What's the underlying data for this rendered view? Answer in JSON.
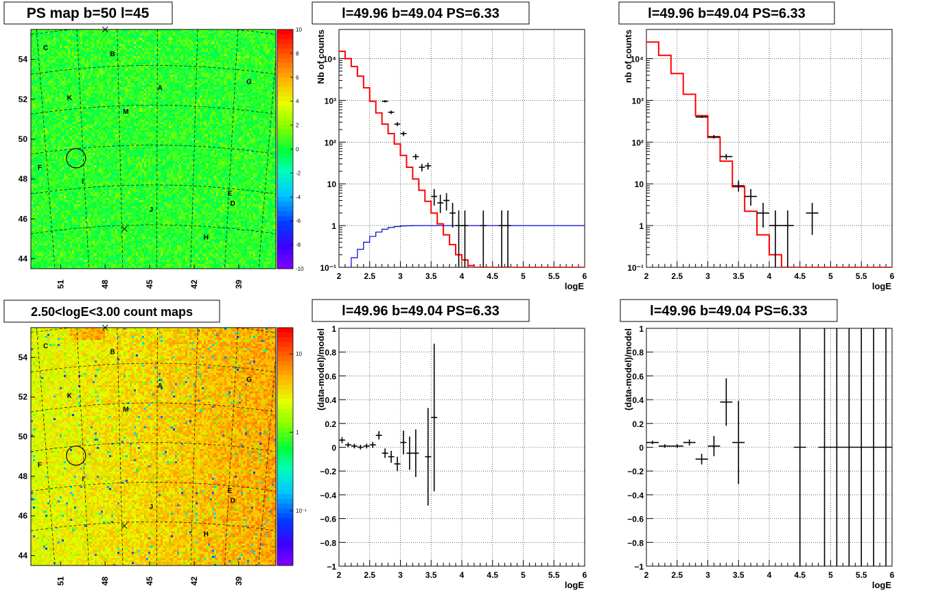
{
  "chart_data": [
    {
      "panel": "ps-map",
      "type": "heatmap",
      "title": "PS map b=50 l=45",
      "xticks": [
        "51",
        "48",
        "45",
        "42",
        "39"
      ],
      "yticks": [
        "54",
        "52",
        "50",
        "48",
        "46",
        "44"
      ],
      "xlim": [
        53,
        36.5
      ],
      "ylim": [
        43.5,
        55.5
      ],
      "colorscale": "linear",
      "zlim": [
        -10,
        10
      ],
      "palette_ticks": [
        "10",
        "8",
        "6",
        "4",
        "2",
        "0",
        "-2",
        "-4",
        "-6",
        "-8",
        "-10"
      ],
      "sources": [
        {
          "label": "C",
          "l": 52.0,
          "b": 54.6
        },
        {
          "label": "B",
          "l": 47.5,
          "b": 54.3
        },
        {
          "label": "A",
          "l": 44.3,
          "b": 52.6
        },
        {
          "label": "G",
          "l": 38.3,
          "b": 52.9
        },
        {
          "label": "K",
          "l": 50.4,
          "b": 52.1
        },
        {
          "label": "M",
          "l": 46.6,
          "b": 51.4
        },
        {
          "label": "F",
          "l": 52.4,
          "b": 48.6
        },
        {
          "label": "I",
          "l": 49.5,
          "b": 47.9
        },
        {
          "label": "E",
          "l": 39.6,
          "b": 47.3
        },
        {
          "label": "D",
          "l": 39.4,
          "b": 46.8
        },
        {
          "label": "J",
          "l": 44.9,
          "b": 46.5
        },
        {
          "label": "H",
          "l": 41.2,
          "b": 45.1
        }
      ],
      "crosses": [
        {
          "l": 48.0,
          "b": 55.5
        },
        {
          "l": 46.7,
          "b": 45.5
        }
      ],
      "circle": {
        "l": 49.96,
        "b": 49.04
      }
    },
    {
      "panel": "count-map",
      "type": "heatmap",
      "title": "2.50<logE<3.00 count maps",
      "xticks": [
        "51",
        "48",
        "45",
        "42",
        "39"
      ],
      "yticks": [
        "54",
        "52",
        "50",
        "48",
        "46",
        "44"
      ],
      "xlim": [
        53,
        36.5
      ],
      "ylim": [
        43.5,
        55.5
      ],
      "colorscale": "log",
      "palette_ticks": [
        "10",
        "1",
        "10⁻¹"
      ],
      "sources": [
        {
          "label": "C",
          "l": 52.0,
          "b": 54.6
        },
        {
          "label": "B",
          "l": 47.5,
          "b": 54.3
        },
        {
          "label": "A",
          "l": 44.3,
          "b": 52.6
        },
        {
          "label": "G",
          "l": 38.3,
          "b": 52.9
        },
        {
          "label": "K",
          "l": 50.4,
          "b": 52.1
        },
        {
          "label": "M",
          "l": 46.6,
          "b": 51.4
        },
        {
          "label": "F",
          "l": 52.4,
          "b": 48.6
        },
        {
          "label": "I",
          "l": 49.5,
          "b": 47.9
        },
        {
          "label": "E",
          "l": 39.6,
          "b": 47.3
        },
        {
          "label": "D",
          "l": 39.4,
          "b": 46.8
        },
        {
          "label": "J",
          "l": 44.9,
          "b": 46.5
        },
        {
          "label": "H",
          "l": 41.2,
          "b": 45.1
        }
      ],
      "crosses": [
        {
          "l": 48.0,
          "b": 55.5
        },
        {
          "l": 46.7,
          "b": 45.5
        }
      ],
      "circle": {
        "l": 49.96,
        "b": 49.04
      }
    },
    {
      "panel": "spectrum-fine",
      "type": "line",
      "title": "l=49.96 b=49.04 PS=6.33",
      "xlabel": "logE",
      "ylabel": "Nb of counts",
      "xlim": [
        2,
        6
      ],
      "ylim": [
        0.1,
        50000
      ],
      "ylog": true,
      "grid": true,
      "xticks": [
        "2",
        "2.5",
        "3",
        "3.5",
        "4",
        "4.5",
        "5",
        "5.5",
        "6"
      ],
      "yticks": [
        {
          "v": 10000,
          "label": "10⁴"
        },
        {
          "v": 1000,
          "label": "10³"
        },
        {
          "v": 100,
          "label": "10²"
        },
        {
          "v": 10,
          "label": "10"
        },
        {
          "v": 1,
          "label": "1"
        },
        {
          "v": 0.1,
          "label": "10⁻¹"
        }
      ],
      "series": [
        {
          "color": "#ff0000",
          "style": "step",
          "bin_width": 0.1,
          "x": [
            2.0,
            2.1,
            2.2,
            2.3,
            2.4,
            2.5,
            2.6,
            2.7,
            2.8,
            2.9,
            3.0,
            3.1,
            3.2,
            3.3,
            3.4,
            3.5,
            3.6,
            3.7,
            3.8,
            3.9,
            4.0,
            4.1,
            4.2,
            4.3,
            4.4,
            4.5,
            4.6,
            4.7,
            4.8,
            4.9,
            5.0,
            5.1,
            5.2,
            5.3,
            5.4,
            5.5,
            5.6,
            5.7,
            5.8,
            5.9
          ],
          "y": [
            15000,
            10000,
            6500,
            3800,
            2000,
            950,
            500,
            270,
            160,
            90,
            48,
            25,
            13,
            7,
            3.8,
            2.0,
            1.1,
            0.6,
            0.35,
            0.2,
            0.15,
            0.11,
            0.1,
            0.1,
            0.1,
            0.1,
            0.1,
            0.1,
            0.1,
            0.1,
            0.1,
            0.1,
            0.1,
            0.1,
            0.1,
            0.1,
            0.1,
            0.1,
            0.1,
            0.1
          ]
        },
        {
          "color": "#0000cc",
          "style": "step",
          "bin_width": 0.1,
          "x": [
            2.0,
            2.1,
            2.2,
            2.3,
            2.4,
            2.5,
            2.6,
            2.7,
            2.8,
            2.9,
            3.0,
            3.1,
            3.2,
            3.3,
            3.4,
            3.5,
            3.6,
            3.7,
            3.8,
            3.9,
            4.0,
            4.1,
            4.2,
            4.3,
            4.4,
            4.5,
            4.6,
            4.7,
            4.8,
            4.9,
            5.0,
            5.1,
            5.2,
            5.3,
            5.4,
            5.5,
            5.6,
            5.7,
            5.8,
            5.9
          ],
          "y": [
            0.05,
            0.1,
            0.17,
            0.27,
            0.4,
            0.55,
            0.7,
            0.82,
            0.9,
            0.95,
            0.98,
            0.99,
            1,
            1,
            1,
            1,
            1,
            1,
            1,
            1,
            1,
            1,
            1,
            1,
            1,
            1,
            1,
            1,
            1,
            1,
            1,
            1,
            1,
            1,
            1,
            1,
            1,
            1,
            1,
            1
          ]
        },
        {
          "color": "#000000",
          "style": "errorbar",
          "xerr": 0.05,
          "points": [
            {
              "x": 2.75,
              "y": 950,
              "lo": 890,
              "hi": 1010
            },
            {
              "x": 2.85,
              "y": 520,
              "lo": 470,
              "hi": 570
            },
            {
              "x": 2.95,
              "y": 270,
              "lo": 240,
              "hi": 300
            },
            {
              "x": 3.05,
              "y": 160,
              "lo": 140,
              "hi": 180
            },
            {
              "x": 3.25,
              "y": 45,
              "lo": 38,
              "hi": 52
            },
            {
              "x": 3.35,
              "y": 25,
              "lo": 20,
              "hi": 30
            },
            {
              "x": 3.45,
              "y": 27,
              "lo": 22,
              "hi": 32
            },
            {
              "x": 3.55,
              "y": 5,
              "lo": 3,
              "hi": 7.5
            },
            {
              "x": 3.65,
              "y": 3.5,
              "lo": 2,
              "hi": 5.5
            },
            {
              "x": 3.75,
              "y": 4,
              "lo": 2.3,
              "hi": 6
            },
            {
              "x": 3.85,
              "y": 2,
              "lo": 0.9,
              "hi": 3.5
            },
            {
              "x": 3.95,
              "y": 1,
              "lo": 0.1,
              "hi": 2.3
            },
            {
              "x": 4.05,
              "y": 1,
              "lo": 0.1,
              "hi": 2.3
            },
            {
              "x": 4.35,
              "y": 1,
              "lo": 0.1,
              "hi": 2.3
            },
            {
              "x": 4.65,
              "y": 1,
              "lo": 0.1,
              "hi": 2.3
            },
            {
              "x": 4.75,
              "y": 1,
              "lo": 0.1,
              "hi": 2.3
            }
          ]
        }
      ]
    },
    {
      "panel": "spectrum-coarse",
      "type": "line",
      "title": "l=49.96 b=49.04 PS=6.33",
      "xlabel": "logE",
      "ylabel": "nb of counts",
      "xlim": [
        2,
        6
      ],
      "ylim": [
        0.1,
        50000
      ],
      "ylog": true,
      "grid": true,
      "xticks": [
        "2",
        "2.5",
        "3",
        "3.5",
        "4",
        "4.5",
        "5",
        "5.5",
        "6"
      ],
      "yticks": [
        {
          "v": 10000,
          "label": "10⁴"
        },
        {
          "v": 1000,
          "label": "10³"
        },
        {
          "v": 100,
          "label": "10²"
        },
        {
          "v": 10,
          "label": "10"
        },
        {
          "v": 1,
          "label": "1"
        },
        {
          "v": 0.1,
          "label": "10⁻¹"
        }
      ],
      "series": [
        {
          "color": "#ff0000",
          "style": "step",
          "bin_width": 0.2,
          "x": [
            2.0,
            2.2,
            2.4,
            2.6,
            2.8,
            3.0,
            3.2,
            3.4,
            3.6,
            3.8,
            4.0,
            4.2,
            4.4,
            4.6,
            4.8,
            5.0,
            5.2,
            5.4,
            5.6,
            5.8
          ],
          "y": [
            25000,
            12000,
            4400,
            1400,
            430,
            130,
            35,
            8.5,
            2.2,
            0.6,
            0.2,
            0.1,
            0.1,
            0.1,
            0.1,
            0.1,
            0.1,
            0.1,
            0.1,
            0.1
          ]
        },
        {
          "color": "#000000",
          "style": "errorbar",
          "xerr": 0.1,
          "points": [
            {
              "x": 2.9,
              "y": 400,
              "lo": 380,
              "hi": 420
            },
            {
              "x": 3.1,
              "y": 135,
              "lo": 122,
              "hi": 148
            },
            {
              "x": 3.3,
              "y": 45,
              "lo": 38,
              "hi": 52
            },
            {
              "x": 3.5,
              "y": 9,
              "lo": 6.5,
              "hi": 12
            },
            {
              "x": 3.7,
              "y": 5,
              "lo": 3,
              "hi": 7.5
            },
            {
              "x": 3.9,
              "y": 2,
              "lo": 0.9,
              "hi": 3.5
            },
            {
              "x": 4.1,
              "y": 1,
              "lo": 0.1,
              "hi": 2.3
            },
            {
              "x": 4.3,
              "y": 1,
              "lo": 0.1,
              "hi": 2.3
            },
            {
              "x": 4.7,
              "y": 2,
              "lo": 0.6,
              "hi": 3.5
            }
          ]
        }
      ]
    },
    {
      "panel": "residual-fine",
      "type": "scatter",
      "title": "l=49.96 b=49.04 PS=6.33",
      "xlabel": "logE",
      "ylabel": "(data-model)/model",
      "xlim": [
        2,
        6
      ],
      "ylim": [
        -1,
        1
      ],
      "grid": true,
      "xticks": [
        "2",
        "2.5",
        "3",
        "3.5",
        "4",
        "4.5",
        "5",
        "5.5",
        "6"
      ],
      "yticks": [
        "1",
        "0.8",
        "0.6",
        "0.4",
        "0.2",
        "0",
        "−0.2",
        "−0.4",
        "−0.6",
        "−0.8",
        "−1"
      ],
      "ytick_values": [
        1,
        0.8,
        0.6,
        0.4,
        0.2,
        0,
        -0.2,
        -0.4,
        -0.6,
        -0.8,
        -1
      ],
      "xerr": 0.05,
      "points": [
        {
          "x": 2.05,
          "y": 0.06,
          "err": 0.025
        },
        {
          "x": 2.15,
          "y": 0.02,
          "err": 0.02
        },
        {
          "x": 2.25,
          "y": 0.01,
          "err": 0.02
        },
        {
          "x": 2.35,
          "y": 0.0,
          "err": 0.02
        },
        {
          "x": 2.45,
          "y": 0.01,
          "err": 0.02
        },
        {
          "x": 2.55,
          "y": 0.02,
          "err": 0.025
        },
        {
          "x": 2.65,
          "y": 0.1,
          "err": 0.035
        },
        {
          "x": 2.75,
          "y": -0.05,
          "err": 0.04
        },
        {
          "x": 2.85,
          "y": -0.08,
          "err": 0.05
        },
        {
          "x": 2.95,
          "y": -0.14,
          "err": 0.06
        },
        {
          "x": 3.05,
          "y": 0.04,
          "err": 0.1
        },
        {
          "x": 3.15,
          "y": -0.05,
          "err": 0.14
        },
        {
          "x": 3.25,
          "y": -0.05,
          "err": 0.2
        },
        {
          "x": 3.45,
          "y": -0.08,
          "err": 0.41
        },
        {
          "x": 3.55,
          "y": 0.25,
          "err": 0.62
        }
      ]
    },
    {
      "panel": "residual-coarse",
      "type": "scatter",
      "title": "l=49.96 b=49.04 PS=6.33",
      "xlabel": "logE",
      "ylabel": "(data-model)/model",
      "xlim": [
        2,
        6
      ],
      "ylim": [
        -1,
        1
      ],
      "grid": true,
      "xticks": [
        "2",
        "2.5",
        "3",
        "3.5",
        "4",
        "4.5",
        "5",
        "5.5",
        "6"
      ],
      "yticks": [
        "1",
        "0.8",
        "0.6",
        "0.4",
        "0.2",
        "0",
        "−0.2",
        "−0.4",
        "−0.6",
        "−0.8",
        "−1"
      ],
      "ytick_values": [
        1,
        0.8,
        0.6,
        0.4,
        0.2,
        0,
        -0.2,
        -0.4,
        -0.6,
        -0.8,
        -1
      ],
      "xerr": 0.1,
      "points": [
        {
          "x": 2.1,
          "y": 0.04,
          "err": 0.015
        },
        {
          "x": 2.3,
          "y": 0.01,
          "err": 0.015
        },
        {
          "x": 2.5,
          "y": 0.01,
          "err": 0.015
        },
        {
          "x": 2.7,
          "y": 0.04,
          "err": 0.025
        },
        {
          "x": 2.9,
          "y": -0.1,
          "err": 0.045
        },
        {
          "x": 3.1,
          "y": 0.01,
          "err": 0.085
        },
        {
          "x": 3.3,
          "y": 0.38,
          "err": 0.2
        },
        {
          "x": 3.5,
          "y": 0.04,
          "err": 0.35
        },
        {
          "x": 4.5,
          "y": 0,
          "err": 5
        },
        {
          "x": 4.9,
          "y": 0,
          "err": 5
        },
        {
          "x": 5.1,
          "y": 0,
          "err": 5
        },
        {
          "x": 5.3,
          "y": 0,
          "err": 5
        },
        {
          "x": 5.5,
          "y": 0,
          "err": 5
        },
        {
          "x": 5.7,
          "y": 0,
          "err": 5
        },
        {
          "x": 5.9,
          "y": 0,
          "err": 5
        }
      ]
    }
  ],
  "colors": {
    "frame": "#000000",
    "grid": "#000000",
    "model": "#ff0000",
    "efficiency": "#0000cc",
    "data": "#000000"
  }
}
